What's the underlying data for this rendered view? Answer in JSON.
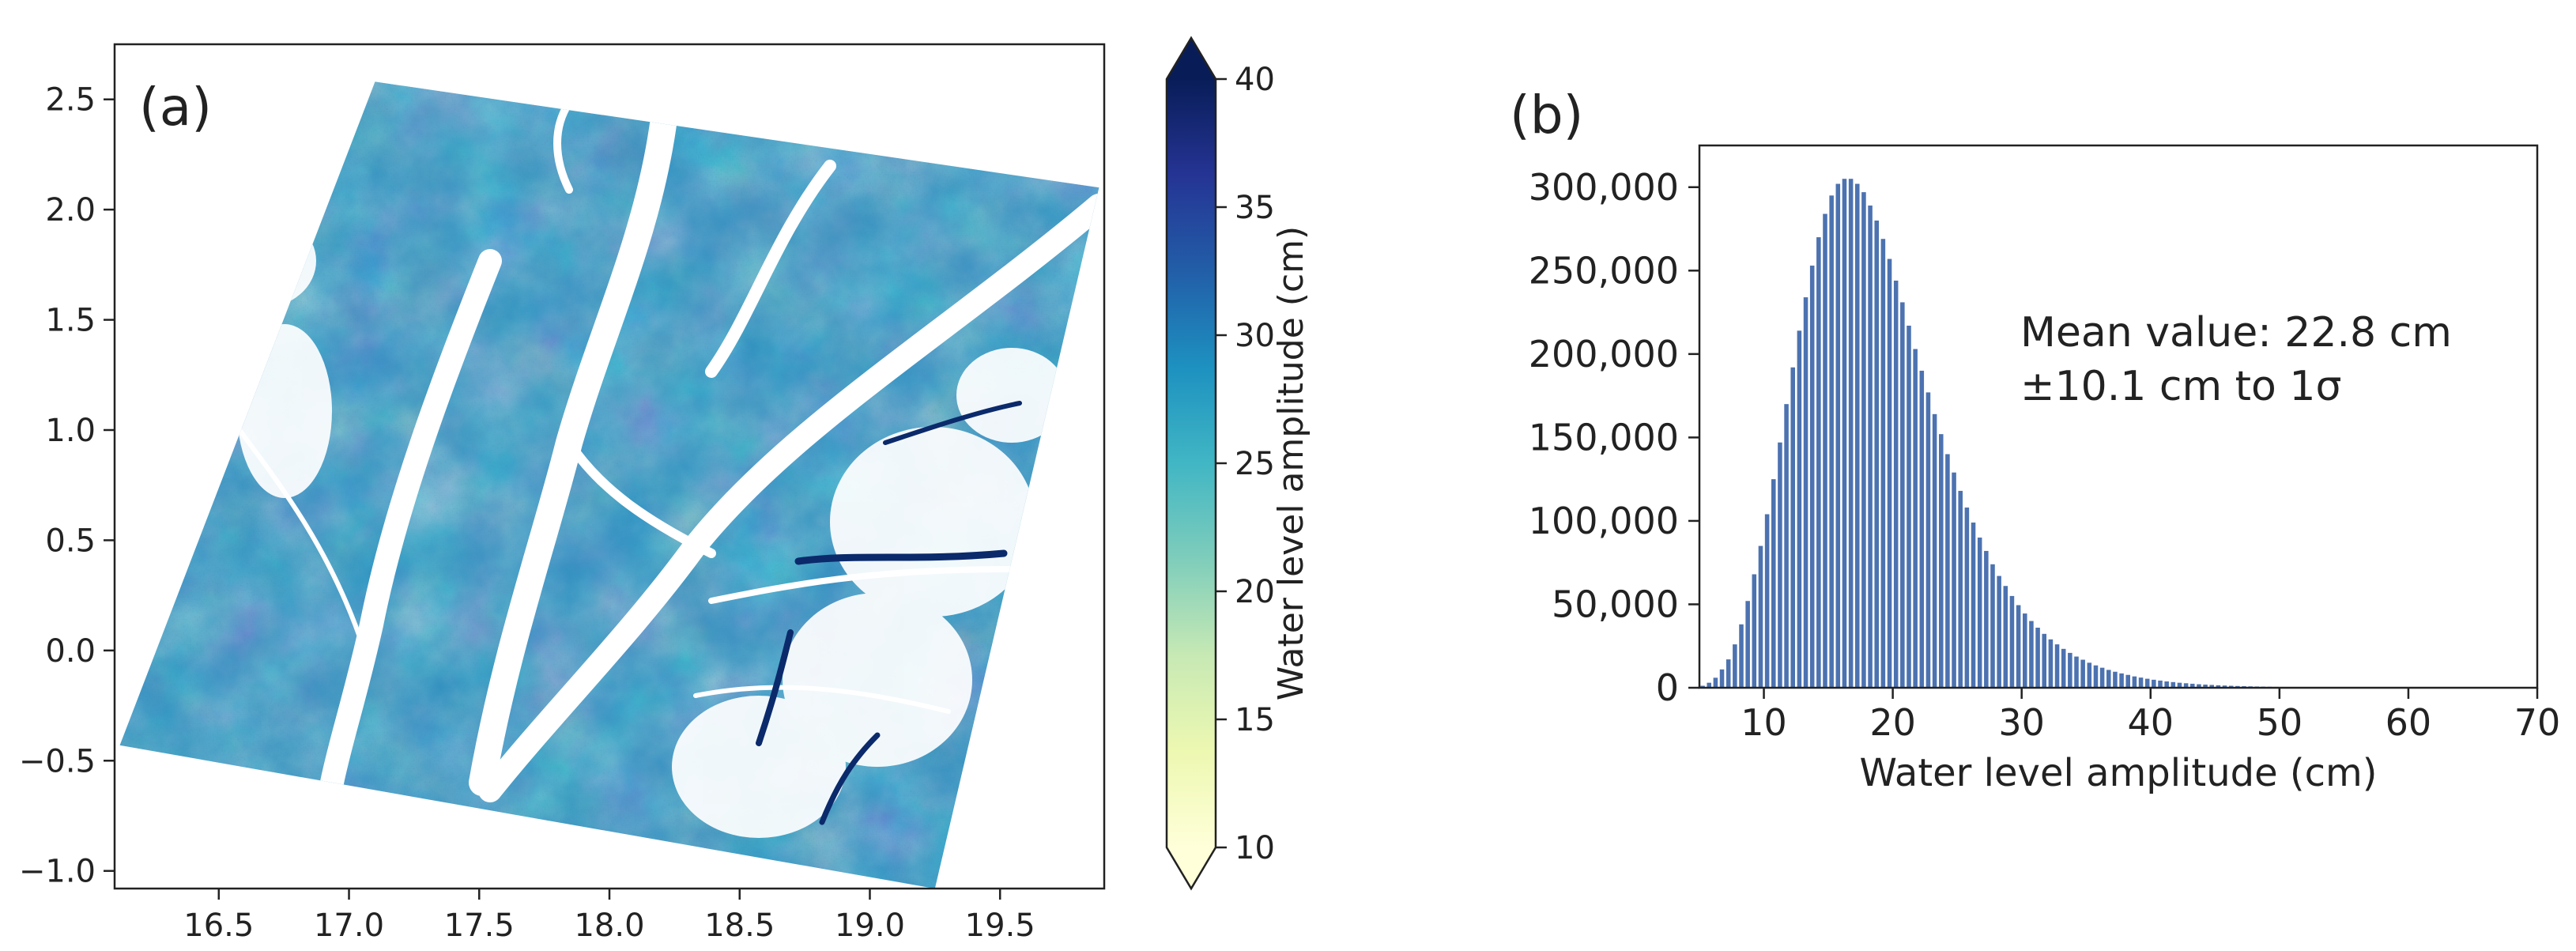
{
  "chart_data": [
    {
      "panel": "(a)",
      "type": "heatmap",
      "title": "",
      "xlabel": "",
      "ylabel": "",
      "xlim": [
        16.1,
        19.9
      ],
      "ylim": [
        -1.08,
        2.75
      ],
      "x_ticks": [
        16.5,
        17.0,
        17.5,
        18.0,
        18.5,
        19.0,
        19.5
      ],
      "x_tick_labels": [
        "16.5",
        "17.0",
        "17.5",
        "18.0",
        "18.5",
        "19.0",
        "19.5"
      ],
      "y_ticks": [
        -1.0,
        -0.5,
        0.0,
        0.5,
        1.0,
        1.5,
        2.0,
        2.5
      ],
      "y_tick_labels": [
        "−1.0",
        "−0.5",
        "0.0",
        "0.5",
        "1.0",
        "1.5",
        "2.0",
        "2.5"
      ],
      "footprint_corners": [
        [
          16.12,
          -0.43
        ],
        [
          17.1,
          2.58
        ],
        [
          19.88,
          2.1
        ],
        [
          19.25,
          -1.08
        ]
      ],
      "colorbar": {
        "label": "Water level amplitude (cm)",
        "range": [
          10,
          40
        ],
        "ticks": [
          10,
          15,
          20,
          25,
          30,
          35,
          40
        ],
        "tick_labels": [
          "10",
          "15",
          "20",
          "25",
          "30",
          "35",
          "40"
        ],
        "extend": "both",
        "colormap": "YlGnBu",
        "color_stops": [
          "#ffffd9",
          "#edf8b1",
          "#c7e9b4",
          "#7fcdbb",
          "#41b6c4",
          "#1d91c0",
          "#225ea8",
          "#253494",
          "#081d58"
        ]
      }
    },
    {
      "panel": "(b)",
      "type": "bar",
      "title": "",
      "xlabel": "Water level amplitude (cm)",
      "ylabel": "",
      "xlim": [
        5,
        70
      ],
      "ylim": [
        0,
        325000
      ],
      "x_ticks": [
        10,
        20,
        30,
        40,
        50,
        60,
        70
      ],
      "y_ticks": [
        0,
        50000,
        100000,
        150000,
        200000,
        250000,
        300000
      ],
      "y_tick_labels": [
        "0",
        "50,000",
        "100,000",
        "150,000",
        "200,000",
        "250,000",
        "300,000"
      ],
      "bin_start": 5.0,
      "bin_width": 0.5,
      "bar_color": "#4c72b0",
      "values": [
        1200,
        3000,
        6000,
        11000,
        17000,
        26000,
        38000,
        52000,
        68000,
        85000,
        104000,
        125000,
        147000,
        170000,
        192000,
        214000,
        234000,
        253000,
        270000,
        284000,
        295000,
        302000,
        305000,
        305000,
        302000,
        297000,
        289000,
        280000,
        269000,
        257000,
        244000,
        231000,
        217000,
        203000,
        190000,
        177000,
        164000,
        152000,
        140000,
        129000,
        118000,
        108000,
        99000,
        90000,
        82000,
        74000,
        67000,
        61000,
        55000,
        49500,
        44500,
        40000,
        36000,
        32300,
        29000,
        26000,
        23300,
        20900,
        18700,
        16800,
        15000,
        13400,
        12000,
        10700,
        9600,
        8600,
        7700,
        6800,
        6100,
        5400,
        4800,
        4300,
        3800,
        3400,
        3000,
        2700,
        2400,
        2100,
        1900,
        1700,
        1500,
        1330,
        1180,
        1050,
        930,
        830,
        740,
        660,
        590,
        520,
        460,
        410,
        370,
        330,
        290,
        260,
        230,
        200,
        180,
        160,
        140,
        125,
        110,
        100,
        90,
        80,
        70,
        62,
        55,
        50,
        44,
        40,
        35,
        32,
        28,
        25,
        22,
        20,
        18,
        16,
        14,
        12,
        11,
        10,
        9,
        8,
        7,
        6,
        6,
        5
      ],
      "annotation": [
        "Mean value: 22.8 cm",
        "±10.1 cm to 1σ"
      ]
    }
  ]
}
